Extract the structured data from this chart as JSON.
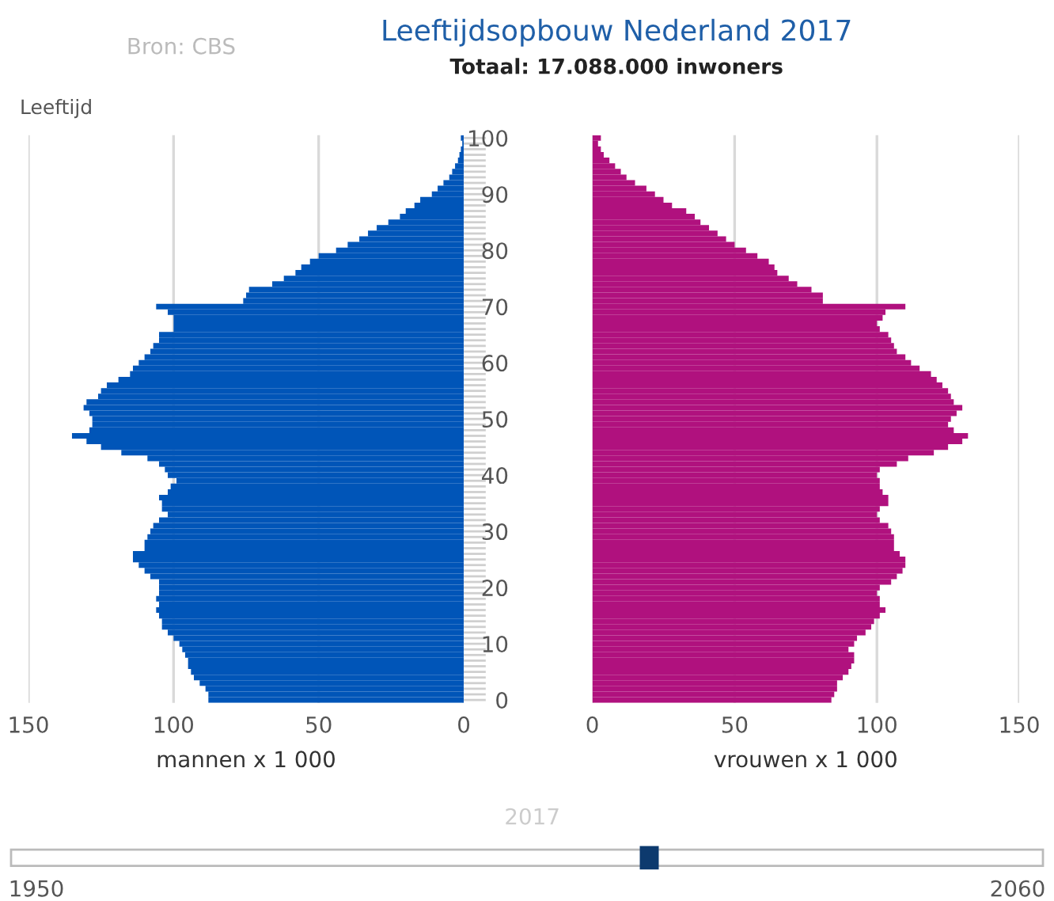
{
  "chart_data": [
    {
      "type": "bar",
      "orientation": "horizontal",
      "xlabel": "mannen x 1 000",
      "ylabel": "Leeftijd",
      "annotations": [
        "Bron: CBS",
        "2017",
        "1950",
        "2060"
      ],
      "xlim": [
        150,
        0
      ],
      "xticks": [
        0,
        50,
        100,
        150
      ],
      "ylim": [
        -0.5,
        100.5
      ],
      "yticks": [
        0,
        10,
        20,
        30,
        40,
        50,
        60,
        70,
        80,
        90,
        100
      ],
      "tick_labels": "x",
      "grid": "x",
      "x": [
        0,
        1,
        2,
        3,
        4,
        5,
        6,
        7,
        8,
        9,
        10,
        11,
        12,
        13,
        14,
        15,
        16,
        17,
        18,
        19,
        20,
        21,
        22,
        23,
        24,
        25,
        26,
        27,
        28,
        29,
        30,
        31,
        32,
        33,
        34,
        35,
        36,
        37,
        38,
        39,
        40,
        41,
        42,
        43,
        44,
        45,
        46,
        47,
        48,
        49,
        50,
        51,
        52,
        53,
        54,
        55,
        56,
        57,
        58,
        59,
        60,
        61,
        62,
        63,
        64,
        65,
        66,
        67,
        68,
        69,
        70,
        71,
        72,
        73,
        74,
        75,
        76,
        77,
        78,
        79,
        80,
        81,
        82,
        83,
        84,
        85,
        86,
        87,
        88,
        89,
        90,
        91,
        92,
        93,
        94,
        95,
        96,
        97,
        98,
        99,
        100
      ],
      "series": [
        {
          "color": "#0055b8",
          "values": [
            88,
            88,
            89,
            91,
            93,
            94,
            95,
            95,
            96,
            97,
            98,
            100,
            102,
            104,
            104,
            105,
            106,
            105,
            106,
            105,
            105,
            105,
            108,
            110,
            112,
            114,
            114,
            110,
            110,
            109,
            108,
            107,
            105,
            102,
            104,
            104,
            105,
            102,
            101,
            99,
            102,
            103,
            105,
            109,
            118,
            125,
            130,
            135,
            129,
            128,
            128,
            129,
            131,
            130,
            126,
            125,
            123,
            119,
            115,
            114,
            112,
            110,
            108,
            107,
            105,
            105,
            100,
            100,
            100,
            102,
            106,
            76,
            75,
            74,
            66,
            62,
            58,
            56,
            53,
            50,
            44,
            40,
            36,
            33,
            30,
            26,
            22,
            20,
            17,
            15,
            11,
            9,
            7,
            5,
            4,
            3,
            2,
            1.5,
            1,
            0.5,
            1
          ]
        }
      ]
    },
    {
      "type": "bar",
      "orientation": "horizontal",
      "title": "Leeftijdsopbouw Nederland 2017",
      "subtitle": "Totaal: 17.088.000 inwoners",
      "xlabel": "vrouwen x 1 000",
      "xlim": [
        0,
        150
      ],
      "xticks": [
        0,
        50,
        100,
        150
      ],
      "ylim": [
        -0.5,
        100.5
      ],
      "yticks": [
        0,
        10,
        20,
        30,
        40,
        50,
        60,
        70,
        80,
        90,
        100
      ],
      "grid": "x",
      "x": [
        0,
        1,
        2,
        3,
        4,
        5,
        6,
        7,
        8,
        9,
        10,
        11,
        12,
        13,
        14,
        15,
        16,
        17,
        18,
        19,
        20,
        21,
        22,
        23,
        24,
        25,
        26,
        27,
        28,
        29,
        30,
        31,
        32,
        33,
        34,
        35,
        36,
        37,
        38,
        39,
        40,
        41,
        42,
        43,
        44,
        45,
        46,
        47,
        48,
        49,
        50,
        51,
        52,
        53,
        54,
        55,
        56,
        57,
        58,
        59,
        60,
        61,
        62,
        63,
        64,
        65,
        66,
        67,
        68,
        69,
        70,
        71,
        72,
        73,
        74,
        75,
        76,
        77,
        78,
        79,
        80,
        81,
        82,
        83,
        84,
        85,
        86,
        87,
        88,
        89,
        90,
        91,
        92,
        93,
        94,
        95,
        96,
        97,
        98,
        99,
        100
      ],
      "series": [
        {
          "color": "#b0117e",
          "values": [
            84,
            85,
            86,
            86,
            88,
            90,
            91,
            92,
            92,
            90,
            92,
            93,
            96,
            98,
            99,
            101,
            103,
            101,
            101,
            100,
            101,
            105,
            107,
            109,
            110,
            110,
            108,
            106,
            106,
            106,
            105,
            104,
            101,
            100,
            101,
            104,
            104,
            102,
            101,
            101,
            100,
            101,
            107,
            111,
            120,
            125,
            130,
            132,
            127,
            125,
            126,
            128,
            130,
            127,
            126,
            125,
            123,
            121,
            119,
            115,
            112,
            110,
            107,
            106,
            105,
            104,
            101,
            100,
            102,
            103,
            110,
            81,
            81,
            77,
            72,
            69,
            65,
            64,
            62,
            58,
            54,
            50,
            47,
            44,
            41,
            38,
            36,
            33,
            28,
            25,
            22,
            19,
            15,
            12,
            10,
            8,
            6,
            4,
            3,
            2,
            3
          ]
        }
      ]
    }
  ]
}
